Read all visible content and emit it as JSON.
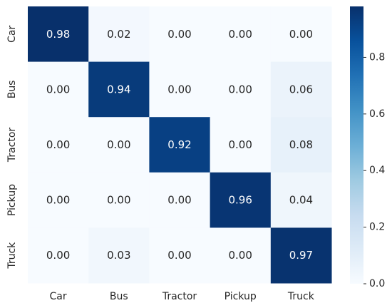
{
  "chart_data": {
    "type": "heatmap",
    "title": "",
    "xlabel": "",
    "ylabel": "",
    "x_categories": [
      "Car",
      "Bus",
      "Tractor",
      "Pickup",
      "Truck"
    ],
    "y_categories": [
      "Car",
      "Bus",
      "Tractor",
      "Pickup",
      "Truck"
    ],
    "values": [
      [
        0.98,
        0.02,
        0.0,
        0.0,
        0.0
      ],
      [
        0.0,
        0.94,
        0.0,
        0.0,
        0.06
      ],
      [
        0.0,
        0.0,
        0.92,
        0.0,
        0.08
      ],
      [
        0.0,
        0.0,
        0.0,
        0.96,
        0.04
      ],
      [
        0.0,
        0.03,
        0.0,
        0.0,
        0.97
      ]
    ],
    "value_format": "0.00",
    "colormap": "Blues",
    "colorbar": {
      "range": [
        0,
        0.98
      ],
      "ticks": [
        0.0,
        0.2,
        0.4,
        0.6,
        0.8
      ],
      "tick_labels": [
        "0.0",
        "0.2",
        "0.4",
        "0.6",
        "0.8"
      ]
    },
    "colors": {
      "low": "#f7fbff",
      "high": "#08306b",
      "text_dark": "#262626",
      "text_light": "#ffffff"
    },
    "grid": false
  }
}
